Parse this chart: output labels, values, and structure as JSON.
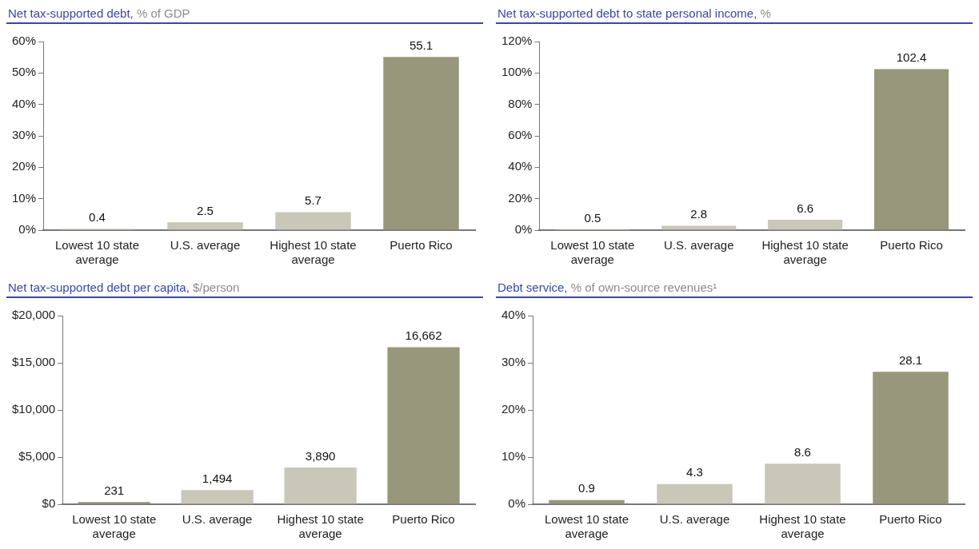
{
  "chart_data": [
    {
      "type": "bar",
      "title": "Net tax-supported debt,",
      "subtitle": "% of GDP",
      "categories": [
        "Lowest 10 state average",
        "U.S. average",
        "Highest 10 state average",
        "Puerto Rico"
      ],
      "values": [
        0.4,
        2.5,
        5.7,
        55.1
      ],
      "colors": [
        "#c8c7b8",
        "#c8c7b8",
        "#c8c7b8",
        "#98977b"
      ],
      "ylim": [
        0,
        60
      ],
      "yticks": [
        {
          "value": 0,
          "label": "0%"
        },
        {
          "value": 10,
          "label": "10%"
        },
        {
          "value": 20,
          "label": "20%"
        },
        {
          "value": 30,
          "label": "30%"
        },
        {
          "value": 40,
          "label": "40%"
        },
        {
          "value": 50,
          "label": "50%"
        },
        {
          "value": 60,
          "label": "60%"
        }
      ],
      "data_labels": true,
      "legend": false
    },
    {
      "type": "bar",
      "title": "Net tax-supported debt to state personal income,",
      "subtitle": "%",
      "categories": [
        "Lowest 10 state average",
        "U.S. average",
        "Highest 10 state average",
        "Puerto Rico"
      ],
      "values": [
        0.5,
        2.8,
        6.6,
        102.4
      ],
      "colors": [
        "#c8c7b8",
        "#c8c7b8",
        "#c8c7b8",
        "#98977b"
      ],
      "ylim": [
        0,
        120
      ],
      "yticks": [
        {
          "value": 0,
          "label": "0%"
        },
        {
          "value": 20,
          "label": "20%"
        },
        {
          "value": 40,
          "label": "40%"
        },
        {
          "value": 60,
          "label": "60%"
        },
        {
          "value": 80,
          "label": "80%"
        },
        {
          "value": 100,
          "label": "100%"
        },
        {
          "value": 120,
          "label": "120%"
        }
      ],
      "data_labels": true,
      "legend": false
    },
    {
      "type": "bar",
      "title": "Net tax-supported debt per capita,",
      "subtitle": "$/person",
      "categories": [
        "Lowest 10 state average",
        "U.S. average",
        "Highest 10 state average",
        "Puerto Rico"
      ],
      "values": [
        231,
        1494,
        3890,
        16662
      ],
      "value_labels": [
        "231",
        "1,494",
        "3,890",
        "16,662"
      ],
      "colors": [
        "#98977b",
        "#c8c7b8",
        "#c8c7b8",
        "#98977b"
      ],
      "ylim": [
        0,
        20000
      ],
      "yticks": [
        {
          "value": 0,
          "label": "$0"
        },
        {
          "value": 5000,
          "label": "$5,000"
        },
        {
          "value": 10000,
          "label": "$10,000"
        },
        {
          "value": 15000,
          "label": "$15,000"
        },
        {
          "value": 20000,
          "label": "$20,000"
        }
      ],
      "legend": false
    },
    {
      "type": "bar",
      "title": "Debt service,",
      "subtitle": "% of own-source revenues¹",
      "categories": [
        "Lowest 10 state average",
        "U.S. average",
        "Highest 10 state average",
        "Puerto Rico"
      ],
      "values": [
        0.9,
        4.3,
        8.6,
        28.1
      ],
      "colors": [
        "#98977b",
        "#c8c7b8",
        "#c8c7b8",
        "#98977b"
      ],
      "ylim": [
        0,
        40
      ],
      "yticks": [
        {
          "value": 0,
          "label": "0%"
        },
        {
          "value": 10,
          "label": "10%"
        },
        {
          "value": 20,
          "label": "20%"
        },
        {
          "value": 30,
          "label": "30%"
        },
        {
          "value": 40,
          "label": "40%"
        }
      ],
      "data_labels": true,
      "legend": false
    }
  ]
}
